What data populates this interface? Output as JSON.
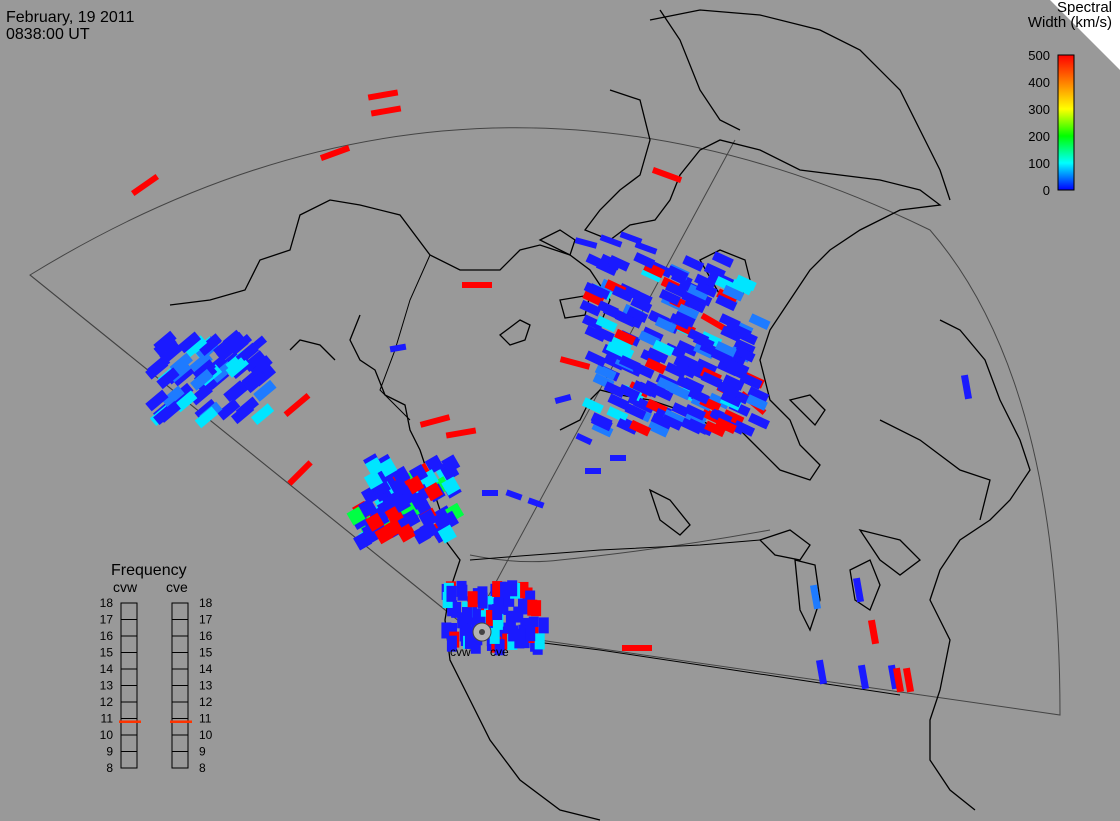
{
  "header": {
    "date": "February, 19 2011",
    "time": "0838:00 UT"
  },
  "colorbar": {
    "title_line1": "Spectral",
    "title_line2": "Width (km/s)",
    "ticks": [
      "500",
      "400",
      "300",
      "200",
      "100",
      "0"
    ],
    "colors": [
      "#ff0000",
      "#ff7f00",
      "#ffff00",
      "#00ff00",
      "#00ffff",
      "#0000ff"
    ]
  },
  "radars": [
    {
      "code": "cvw",
      "frequency_mhz": 10.8
    },
    {
      "code": "cve",
      "frequency_mhz": 10.8
    }
  ],
  "frequency_panel": {
    "title": "Frequency",
    "ticks": [
      "18",
      "17",
      "16",
      "15",
      "14",
      "13",
      "12",
      "11",
      "10",
      "9",
      "8"
    ]
  },
  "colors": {
    "background": "#999999",
    "coast": "#000000",
    "echo_blue": "#1a1aff",
    "echo_red": "#ff0000",
    "marker": "#ff3300"
  }
}
